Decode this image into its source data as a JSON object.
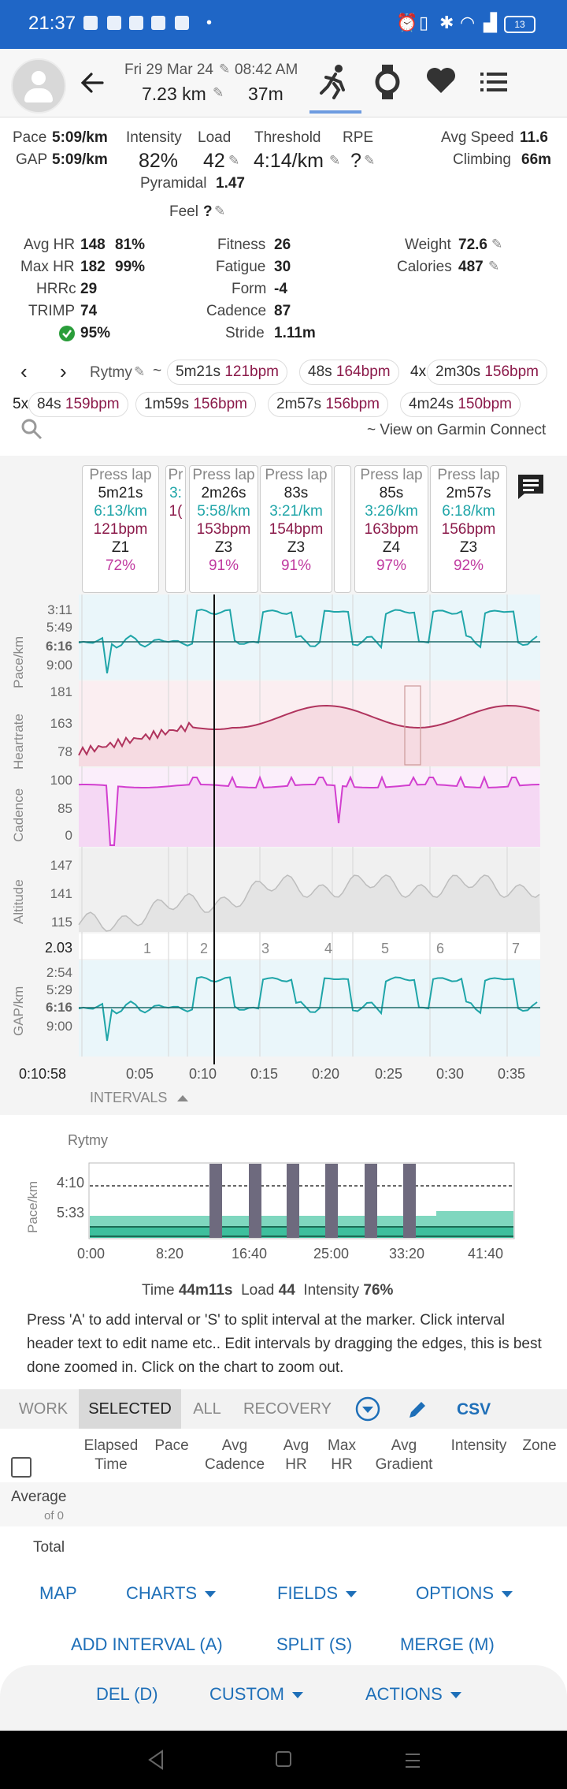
{
  "status_bar": {
    "time": "21:37",
    "battery": "13"
  },
  "header": {
    "date": "Fri 29 Mar 24",
    "time": "08:42 AM",
    "distance": "7.23 km",
    "duration": "37m",
    "tabs": [
      "run-icon",
      "watch-icon",
      "heart-icon",
      "list-icon"
    ]
  },
  "stats": {
    "pace_label": "Pace",
    "pace": "5:09/km",
    "gap_label": "GAP",
    "gap": "5:09/km",
    "intensity_label": "Intensity",
    "intensity": "82%",
    "load_label": "Load",
    "load": "42",
    "threshold_label": "Threshold",
    "threshold": "4:14/km",
    "rpe_label": "RPE",
    "rpe": "?",
    "avg_speed_label": "Avg Speed",
    "avg_speed": "11.6",
    "climbing_label": "Climbing",
    "climbing": "66m",
    "pyramidal_label": "Pyramidal",
    "pyramidal": "1.47",
    "feel_label": "Feel",
    "feel": "?",
    "avg_hr_label": "Avg HR",
    "avg_hr": "148",
    "avg_hr_pct": "81%",
    "max_hr_label": "Max HR",
    "max_hr": "182",
    "max_hr_pct": "99%",
    "hrrc_label": "HRRc",
    "hrrc": "29",
    "trimp_label": "TRIMP",
    "trimp": "74",
    "compliance": "95%",
    "fitness_label": "Fitness",
    "fitness": "26",
    "fatigue_label": "Fatigue",
    "fatigue": "30",
    "form_label": "Form",
    "form": "-4",
    "cadence_label": "Cadence",
    "cadence": "87",
    "stride_label": "Stride",
    "stride": "1.11m",
    "weight_label": "Weight",
    "weight": "72.6",
    "calories_label": "Calories",
    "calories": "487"
  },
  "workout": {
    "name": "Rytmy",
    "tilde": "~",
    "steps": [
      {
        "d": "5m21s",
        "hr": "121bpm"
      },
      {
        "d": "48s",
        "hr": "164bpm"
      },
      {
        "rep": "4x",
        "d": "2m30s",
        "hr": "156bpm"
      },
      {
        "rep": "5x",
        "d": "84s",
        "hr": "159bpm"
      },
      {
        "d": "1m59s",
        "hr": "156bpm"
      },
      {
        "d": "2m57s",
        "hr": "156bpm"
      },
      {
        "d": "4m24s",
        "hr": "150bpm"
      }
    ],
    "garmin_link": "~ View on Garmin Connect"
  },
  "laps": [
    {
      "title": "Press lap",
      "dur": "5m21s",
      "pace": "6:13/km",
      "hr": "121bpm",
      "zone": "Z1",
      "pct": "72%"
    },
    {
      "title": "Pr",
      "dur": "",
      "pace": "3:",
      "hr": "1(",
      "zone": "",
      "pct": ""
    },
    {
      "title": "Press lap",
      "dur": "2m26s",
      "pace": "5:58/km",
      "hr": "153bpm",
      "zone": "Z3",
      "pct": "91%"
    },
    {
      "title": "Press lap",
      "dur": "83s",
      "pace": "3:21/km",
      "hr": "154bpm",
      "zone": "Z3",
      "pct": "91%"
    },
    {
      "title": "Press lap",
      "dur": "85s",
      "pace": "3:26/km",
      "hr": "163bpm",
      "zone": "Z4",
      "pct": "97%"
    },
    {
      "title": "Press lap",
      "dur": "2m57s",
      "pace": "6:18/km",
      "hr": "156bpm",
      "zone": "Z3",
      "pct": "92%"
    }
  ],
  "panels": {
    "pace": {
      "name": "Pace/km",
      "ticks": [
        "3:11",
        "5:49",
        "6:16",
        "9:00"
      ]
    },
    "heartrate": {
      "name": "Heartrate",
      "ticks": [
        "181",
        "163",
        "78"
      ]
    },
    "cadence": {
      "name": "Cadence",
      "ticks": [
        "100",
        "85",
        "0"
      ]
    },
    "altitude": {
      "name": "Altitude",
      "ticks": [
        "147",
        "141",
        "115"
      ]
    },
    "lapbar": {
      "value": "2.03",
      "labels": [
        "1",
        "2",
        "3",
        "4",
        "5",
        "6",
        "7"
      ]
    },
    "gap": {
      "name": "GAP/km",
      "ticks": [
        "2:54",
        "5:29",
        "6:16",
        "9:00"
      ]
    }
  },
  "x_axis": {
    "cursor": "0:10:58",
    "ticks": [
      "0:05",
      "0:10",
      "0:15",
      "0:20",
      "0:25",
      "0:30",
      "0:35"
    ]
  },
  "intervals_toggle": "INTERVALS",
  "interval_chart": {
    "title": "Rytmy",
    "ylabel": "Pace/km",
    "yticks": [
      "4:10",
      "5:33"
    ],
    "xticks": [
      "0:00",
      "8:20",
      "16:40",
      "25:00",
      "33:20",
      "41:40"
    ]
  },
  "summary": {
    "time_label": "Time",
    "time": "44m11s",
    "load_label": "Load",
    "load": "44",
    "intensity_label": "Intensity",
    "intensity": "76%"
  },
  "help_text": "Press 'A' to add interval or 'S' to split interval at the marker. Click interval header text to edit name etc.. Edit intervals by dragging the edges, this is best done zoomed in. Click on the chart to zoom out.",
  "filter_tabs": [
    "WORK",
    "SELECTED",
    "ALL",
    "RECOVERY"
  ],
  "csv_label": "CSV",
  "table": {
    "columns": [
      {
        "l1": "Elapsed",
        "l2": "Time"
      },
      {
        "l1": "",
        "l2": "Pace"
      },
      {
        "l1": "Avg",
        "l2": "Cadence"
      },
      {
        "l1": "Avg",
        "l2": "HR"
      },
      {
        "l1": "Max",
        "l2": "HR"
      },
      {
        "l1": "Avg",
        "l2": "Gradient"
      },
      {
        "l1": "",
        "l2": "Intensity"
      },
      {
        "l1": "",
        "l2": "Zone"
      }
    ],
    "average_label": "Average",
    "average_sub": "of 0",
    "total_label": "Total"
  },
  "actions": {
    "map": "MAP",
    "charts": "CHARTS",
    "fields": "FIELDS",
    "options": "OPTIONS",
    "add_interval": "ADD INTERVAL (A)",
    "split": "SPLIT (S)",
    "merge": "MERGE (M)",
    "del": "DEL (D)",
    "custom": "CUSTOM",
    "more_actions": "ACTIONS"
  },
  "colors": {
    "accent": "#1e6fb8",
    "status_bar": "#1f66c6",
    "pace": "#1fa5a8",
    "hr": "#b0345e",
    "cadence": "#d23fcf",
    "altitude": "#bdbdbd",
    "interval_bar": "#6e6a7e",
    "interval_fill": "#3dbf9d"
  }
}
